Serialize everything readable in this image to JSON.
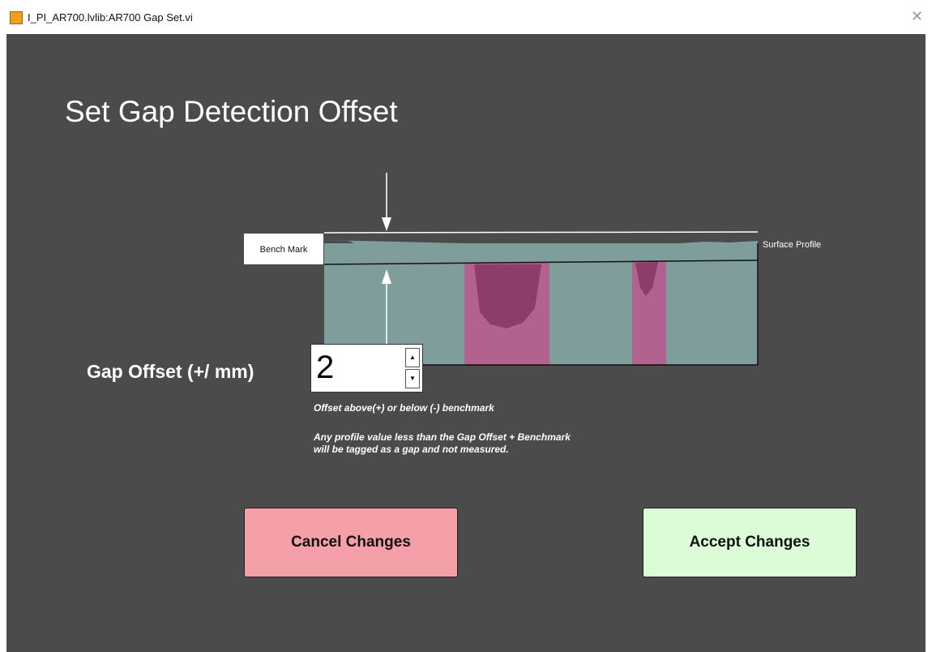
{
  "window": {
    "title": "I_PI_AR700.lvlib:AR700 Gap Set.vi"
  },
  "heading": "Set Gap Detection Offset",
  "diagram": {
    "bench_mark": "Bench Mark",
    "surface_profile": "Surface Profile"
  },
  "gap_offset": {
    "label": "Gap Offset (+/ mm)",
    "value": 2,
    "help": [
      "Offset above(+) or below (-) benchmark",
      "Any profile value less than the Gap Offset + Benchmark",
      "will be tagged as a gap and not measured."
    ]
  },
  "buttons": {
    "cancel": "Cancel Changes",
    "accept": "Accept Changes"
  }
}
